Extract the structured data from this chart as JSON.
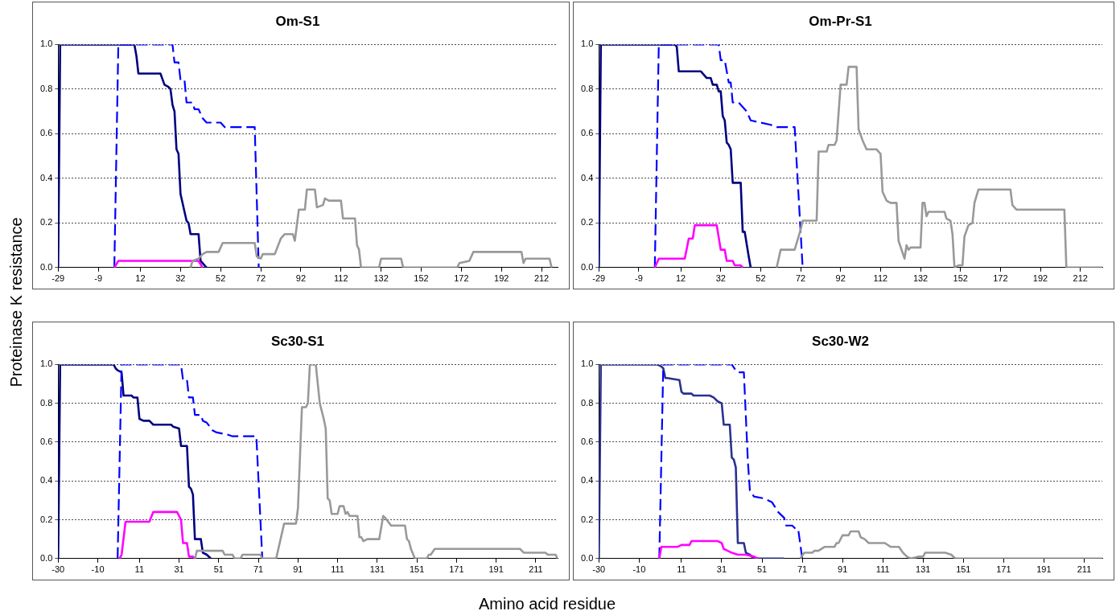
{
  "chart_data": [
    {
      "type": "line",
      "title": "Om-S1",
      "ylabel": "Proteinase K resistance",
      "xlabel": "Amino acid residue",
      "grid": "y",
      "legend": false,
      "marker": "none",
      "xlim": [
        -29,
        220
      ],
      "xticks": [
        -29,
        -9,
        12,
        32,
        52,
        72,
        92,
        112,
        132,
        152,
        172,
        192,
        212
      ],
      "ylim": [
        0,
        1
      ],
      "yticks": [
        {
          "value": 0,
          "label": "0.0"
        },
        {
          "value": 0.2,
          "label": "0.2"
        },
        {
          "value": 0.4,
          "label": "0.4"
        },
        {
          "value": 0.6,
          "label": "0.6"
        },
        {
          "value": 0.8,
          "label": "0.8"
        },
        {
          "value": 1,
          "label": "1.0"
        }
      ],
      "series": [
        {
          "color": "#999999",
          "line_style": "solid",
          "x": [
            37,
            38,
            41,
            43,
            45,
            51,
            53,
            69,
            70,
            72,
            73,
            79,
            82,
            84,
            88,
            89,
            91,
            94,
            95,
            99,
            100,
            103,
            104,
            106,
            112,
            113,
            119,
            120,
            121,
            122,
            131,
            132,
            142,
            143,
            170,
            171,
            176,
            178,
            202,
            203,
            204,
            216,
            217
          ],
          "values": [
            0,
            0.03,
            0.04,
            0.06,
            0.07,
            0.07,
            0.11,
            0.11,
            0.05,
            0.04,
            0.06,
            0.06,
            0.13,
            0.15,
            0.15,
            0.12,
            0.26,
            0.26,
            0.35,
            0.35,
            0.27,
            0.28,
            0.31,
            0.3,
            0.3,
            0.22,
            0.22,
            0.1,
            0.08,
            0,
            0,
            0.04,
            0.04,
            0,
            0,
            0.02,
            0.03,
            0.07,
            0.07,
            0.02,
            0.04,
            0.04,
            0
          ]
        },
        {
          "color": "#ff00ff",
          "line_style": "solid",
          "x": [
            -1,
            1,
            41,
            43
          ],
          "values": [
            0,
            0.03,
            0.03,
            0
          ]
        },
        {
          "color": "#0000ff",
          "line_style": "dashed",
          "x": [
            -1,
            1,
            28,
            29,
            31,
            32,
            34,
            35,
            38,
            39,
            41,
            43,
            45,
            52,
            54,
            69,
            71
          ],
          "values": [
            0,
            1,
            1,
            0.92,
            0.92,
            0.84,
            0.84,
            0.74,
            0.74,
            0.71,
            0.71,
            0.67,
            0.65,
            0.65,
            0.63,
            0.63,
            0
          ]
        },
        {
          "color": "#000080",
          "line_style": "solid",
          "x": [
            -29,
            -28,
            9,
            10,
            11,
            22,
            24,
            26,
            27,
            28,
            29,
            30,
            31,
            32,
            34,
            35,
            36,
            37,
            41,
            42,
            44,
            45
          ],
          "values": [
            0,
            1,
            1,
            0.95,
            0.87,
            0.87,
            0.82,
            0.81,
            0.8,
            0.73,
            0.7,
            0.53,
            0.51,
            0.33,
            0.25,
            0.21,
            0.2,
            0.15,
            0.15,
            0.03,
            0.01,
            0
          ]
        }
      ]
    },
    {
      "type": "line",
      "title": "Om-Pr-S1",
      "grid": "y",
      "legend": false,
      "marker": "none",
      "xlim": [
        -29,
        223
      ],
      "xticks": [
        -29,
        -9,
        12,
        32,
        52,
        72,
        92,
        112,
        132,
        152,
        172,
        192,
        212
      ],
      "ylim": [
        0,
        1
      ],
      "yticks": [
        {
          "value": 0,
          "label": "0.0"
        },
        {
          "value": 0.2,
          "label": "0.2"
        },
        {
          "value": 0.4,
          "label": "0.4"
        },
        {
          "value": 0.6,
          "label": "0.6"
        },
        {
          "value": 0.8,
          "label": "0.8"
        },
        {
          "value": 1,
          "label": "1.0"
        }
      ],
      "series": [
        {
          "color": "#999999",
          "line_style": "solid",
          "x": [
            60,
            62,
            69,
            72,
            73,
            80,
            81,
            85,
            86,
            89,
            90,
            92,
            95,
            96,
            100,
            101,
            103,
            105,
            110,
            112,
            113,
            115,
            117,
            120,
            121,
            124,
            125,
            126,
            127,
            132,
            133,
            134,
            135,
            136,
            144,
            145,
            147,
            148,
            149,
            151,
            153,
            154,
            156,
            158,
            159,
            161,
            177,
            178,
            180,
            204,
            205,
            223
          ],
          "values": [
            0,
            0.08,
            0.08,
            0.17,
            0.21,
            0.21,
            0.52,
            0.52,
            0.55,
            0.55,
            0.57,
            0.82,
            0.82,
            0.9,
            0.9,
            0.62,
            0.57,
            0.53,
            0.53,
            0.51,
            0.34,
            0.3,
            0.29,
            0.29,
            0.12,
            0.04,
            0.1,
            0.08,
            0.09,
            0.09,
            0.29,
            0.29,
            0.23,
            0.25,
            0.25,
            0.22,
            0.21,
            0.15,
            0,
            0.01,
            0.01,
            0.14,
            0.19,
            0.2,
            0.29,
            0.35,
            0.35,
            0.28,
            0.26,
            0.26,
            0,
            0
          ]
        },
        {
          "color": "#ff00ff",
          "line_style": "solid",
          "x": [
            -1,
            1,
            14,
            16,
            18,
            19,
            30,
            32,
            34,
            35,
            38,
            39,
            42,
            43
          ],
          "values": [
            0,
            0.04,
            0.04,
            0.13,
            0.13,
            0.19,
            0.19,
            0.08,
            0.08,
            0.03,
            0.03,
            0.01,
            0.01,
            0
          ]
        },
        {
          "color": "#0000ff",
          "line_style": "dashed",
          "x": [
            -1,
            1,
            31,
            32,
            34,
            36,
            37,
            38,
            41,
            45,
            47,
            52,
            57,
            60,
            69,
            73
          ],
          "values": [
            0,
            1,
            1,
            0.93,
            0.93,
            0.83,
            0.83,
            0.74,
            0.74,
            0.7,
            0.66,
            0.65,
            0.64,
            0.63,
            0.63,
            0
          ]
        },
        {
          "color": "#000080",
          "line_style": "solid",
          "x": [
            -29,
            -28,
            9,
            10,
            11,
            22,
            25,
            27,
            28,
            30,
            31,
            32,
            33,
            34,
            35,
            36,
            37,
            38,
            42,
            43,
            44,
            46,
            47
          ],
          "values": [
            0,
            1,
            1,
            0.99,
            0.88,
            0.88,
            0.85,
            0.85,
            0.82,
            0.82,
            0.79,
            0.79,
            0.68,
            0.66,
            0.56,
            0.55,
            0.53,
            0.38,
            0.38,
            0.16,
            0.16,
            0.05,
            0
          ]
        }
      ]
    },
    {
      "type": "line",
      "title": "Sc30-S1",
      "grid": "y",
      "legend": false,
      "marker": "none",
      "xlim": [
        -30,
        222
      ],
      "xticks": [
        -30,
        -10,
        11,
        31,
        51,
        71,
        91,
        111,
        131,
        151,
        171,
        191,
        211
      ],
      "ylim": [
        0,
        1
      ],
      "yticks": [
        {
          "value": 0,
          "label": "0.0"
        },
        {
          "value": 0.2,
          "label": "0.2"
        },
        {
          "value": 0.4,
          "label": "0.4"
        },
        {
          "value": 0.6,
          "label": "0.6"
        },
        {
          "value": 0.8,
          "label": "0.8"
        },
        {
          "value": 1,
          "label": "1.0"
        }
      ],
      "series": [
        {
          "color": "#999999",
          "line_style": "solid",
          "x": [
            39,
            40,
            53,
            54,
            58,
            59,
            62,
            63,
            72,
            73,
            80,
            84,
            90,
            91,
            93,
            95,
            96,
            97,
            100,
            102,
            104,
            105,
            106,
            107,
            108,
            111,
            112,
            114,
            115,
            116,
            117,
            121,
            122,
            123,
            124,
            126,
            132,
            134,
            135,
            138,
            145,
            146,
            147,
            148,
            150,
            156,
            157,
            158,
            160,
            203,
            205,
            216,
            217,
            221,
            222
          ],
          "values": [
            0,
            0.04,
            0.04,
            0.02,
            0.02,
            0,
            0,
            0.02,
            0.02,
            0,
            0,
            0.18,
            0.18,
            0.26,
            0.78,
            0.78,
            0.8,
            1,
            1,
            0.8,
            0.72,
            0.67,
            0.31,
            0.3,
            0.23,
            0.23,
            0.27,
            0.27,
            0.23,
            0.24,
            0.22,
            0.22,
            0.11,
            0.11,
            0.09,
            0.1,
            0.1,
            0.22,
            0.21,
            0.17,
            0.17,
            0.1,
            0.09,
            0.05,
            0,
            0,
            0.02,
            0.02,
            0.05,
            0.05,
            0.03,
            0.03,
            0.02,
            0.02,
            0
          ]
        },
        {
          "color": "#ff00ff",
          "line_style": "solid",
          "x": [
            1,
            2,
            4,
            16,
            18,
            30,
            32,
            33,
            35,
            36,
            38,
            39
          ],
          "values": [
            0,
            0.02,
            0.19,
            0.19,
            0.24,
            0.24,
            0.2,
            0.08,
            0.08,
            0.01,
            0.01,
            0
          ]
        },
        {
          "color": "#0000ff",
          "line_style": "dashed",
          "x": [
            0,
            2,
            32,
            33,
            35,
            36,
            38,
            39,
            42,
            43,
            45,
            48,
            50,
            55,
            58,
            70,
            73
          ],
          "values": [
            0,
            1,
            1,
            0.92,
            0.92,
            0.83,
            0.83,
            0.74,
            0.74,
            0.71,
            0.7,
            0.66,
            0.65,
            0.64,
            0.63,
            0.63,
            0
          ]
        },
        {
          "color": "#000080",
          "line_style": "solid",
          "x": [
            -30,
            -29,
            -2,
            -1,
            0,
            2,
            3,
            7,
            8,
            10,
            11,
            13,
            16,
            18,
            27,
            28,
            31,
            32,
            35,
            36,
            37,
            38,
            39,
            42,
            43,
            45,
            47
          ],
          "values": [
            0,
            1,
            1,
            0.98,
            0.97,
            0.96,
            0.84,
            0.84,
            0.83,
            0.83,
            0.72,
            0.71,
            0.71,
            0.69,
            0.69,
            0.68,
            0.67,
            0.58,
            0.58,
            0.37,
            0.36,
            0.33,
            0.1,
            0.1,
            0.03,
            0.02,
            0
          ]
        }
      ]
    },
    {
      "type": "line",
      "title": "Sc30-W2",
      "grid": "y",
      "legend": false,
      "marker": "none",
      "xlim": [
        -30,
        220
      ],
      "xticks": [
        -30,
        -10,
        11,
        31,
        51,
        71,
        91,
        111,
        131,
        151,
        171,
        191,
        211
      ],
      "ylim": [
        0,
        1
      ],
      "yticks": [
        {
          "value": 0,
          "label": "0.0"
        },
        {
          "value": 0.2,
          "label": "0.2"
        },
        {
          "value": 0.4,
          "label": "0.4"
        },
        {
          "value": 0.6,
          "label": "0.6"
        },
        {
          "value": 0.8,
          "label": "0.8"
        },
        {
          "value": 1,
          "label": "1.0"
        }
      ],
      "series": [
        {
          "color": "#999999",
          "line_style": "solid",
          "x": [
            70,
            72,
            76,
            77,
            79,
            82,
            87,
            88,
            89,
            91,
            94,
            95,
            99,
            100,
            102,
            104,
            112,
            115,
            119,
            121,
            123,
            125,
            129,
            131,
            132,
            142,
            145,
            147,
            220
          ],
          "values": [
            0,
            0.03,
            0.03,
            0.04,
            0.04,
            0.06,
            0.06,
            0.08,
            0.08,
            0.12,
            0.12,
            0.14,
            0.14,
            0.11,
            0.1,
            0.08,
            0.08,
            0.06,
            0.06,
            0.03,
            0.01,
            0,
            0.01,
            0.01,
            0.03,
            0.03,
            0.02,
            0,
            0
          ]
        },
        {
          "color": "#ff00ff",
          "line_style": "solid",
          "x": [
            0,
            1,
            9,
            11,
            15,
            16,
            29,
            31,
            32,
            34,
            36,
            39,
            43,
            47,
            49
          ],
          "values": [
            0,
            0.06,
            0.06,
            0.07,
            0.07,
            0.09,
            0.09,
            0.08,
            0.05,
            0.04,
            0.03,
            0.02,
            0.02,
            0.01,
            0
          ]
        },
        {
          "color": "#0000ff",
          "line_style": "dashed",
          "x": [
            0,
            2,
            36,
            38,
            39,
            42,
            44,
            45,
            47,
            52,
            56,
            59,
            62,
            63,
            66,
            68,
            69,
            71
          ],
          "values": [
            0,
            1,
            1,
            0.97,
            0.96,
            0.96,
            0.5,
            0.35,
            0.32,
            0.31,
            0.29,
            0.24,
            0.21,
            0.17,
            0.17,
            0.15,
            0.15,
            0
          ]
        },
        {
          "color": "#2b318f",
          "line_style": "solid",
          "x": [
            -30,
            -29,
            -1,
            1,
            2,
            3,
            4,
            10,
            11,
            12,
            16,
            17,
            25,
            27,
            29,
            31,
            32,
            35,
            36,
            37,
            38,
            39,
            42,
            43,
            45,
            47,
            62
          ],
          "values": [
            0,
            1,
            1,
            0.99,
            0.98,
            0.93,
            0.93,
            0.92,
            0.86,
            0.85,
            0.85,
            0.84,
            0.84,
            0.83,
            0.81,
            0.8,
            0.69,
            0.69,
            0.52,
            0.51,
            0.47,
            0.08,
            0.08,
            0.03,
            0.02,
            0,
            0
          ]
        }
      ]
    }
  ]
}
